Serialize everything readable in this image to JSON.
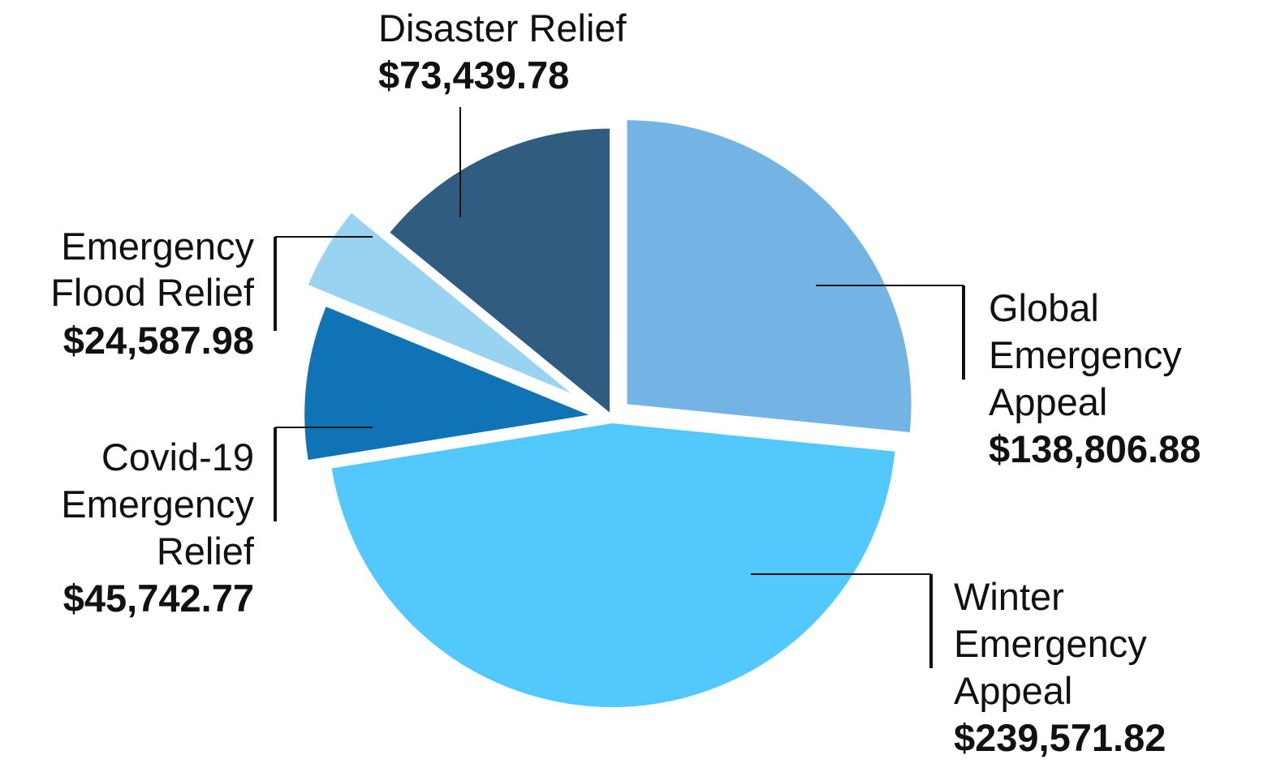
{
  "chart_data": {
    "type": "pie",
    "title": "",
    "slices": [
      {
        "label": "Global Emergency Appeal",
        "name_lines": [
          "Global",
          "Emergency",
          "Appeal"
        ],
        "value": 138806.88,
        "value_label": "$138,806.88",
        "color": "#74b4e4"
      },
      {
        "label": "Winter Emergency Appeal",
        "name_lines": [
          "Winter",
          "Emergency",
          "Appeal"
        ],
        "value": 239571.82,
        "value_label": "$239,571.82",
        "color": "#52c8fc"
      },
      {
        "label": "Covid-19 Emergency Relief",
        "name_lines": [
          "Covid-19",
          "Emergency",
          "Relief"
        ],
        "value": 45742.77,
        "value_label": "$45,742.77",
        "color": "#1073b6"
      },
      {
        "label": "Emergency Flood Relief",
        "name_lines": [
          "Emergency",
          "Flood Relief"
        ],
        "value": 24587.98,
        "value_label": "$24,587.98",
        "color": "#98d4f2"
      },
      {
        "label": "Disaster Relief",
        "name_lines": [
          "Disaster Relief"
        ],
        "value": 73439.78,
        "value_label": "$73,439.78",
        "color": "#305c80"
      }
    ],
    "legend": "none"
  }
}
